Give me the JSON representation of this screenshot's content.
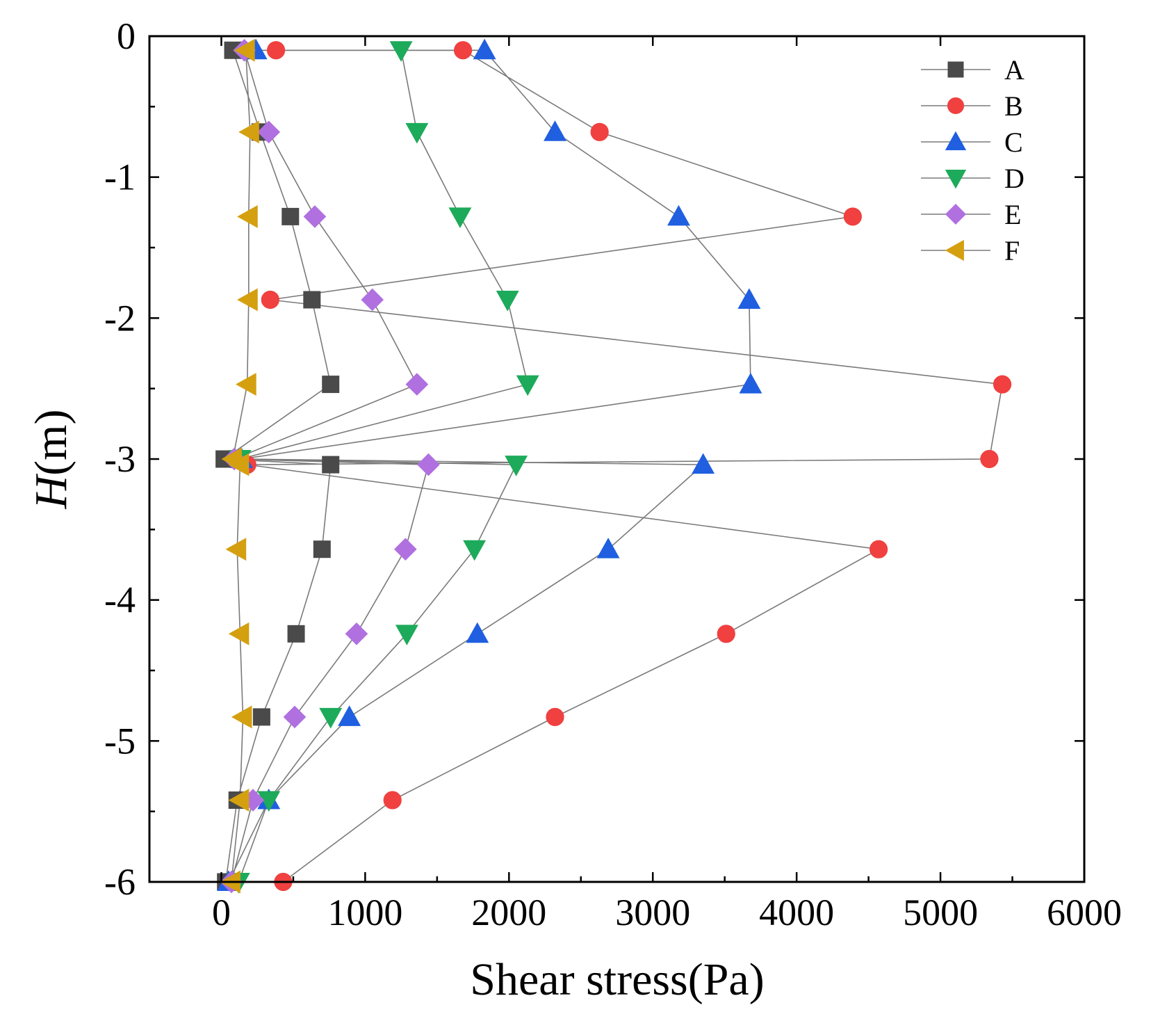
{
  "chart_data": {
    "type": "line",
    "title": "",
    "xlabel": "Shear stress(Pa)",
    "ylabel_italic": "H",
    "ylabel_rest": "(m)",
    "xlim": [
      -500,
      6000
    ],
    "ylim": [
      -6,
      0
    ],
    "x_ticks": [
      0,
      1000,
      2000,
      3000,
      4000,
      5000,
      6000
    ],
    "x_tick_labels": [
      "0",
      "1000",
      "2000",
      "3000",
      "4000",
      "5000",
      "6000"
    ],
    "y_ticks": [
      0,
      -1,
      -2,
      -3,
      -4,
      -5,
      -6
    ],
    "y_tick_labels": [
      "0",
      "-1",
      "-2",
      "-3",
      "-4",
      "-5",
      "-6"
    ],
    "grid": false,
    "legend_position": "top-right",
    "series": [
      {
        "name": "A",
        "marker": "square",
        "color": "#4a4a4a",
        "points": [
          [
            80,
            -0.1
          ],
          [
            270,
            -0.68
          ],
          [
            480,
            -1.28
          ],
          [
            630,
            -1.87
          ],
          [
            760,
            -2.47
          ],
          [
            20,
            -3.0
          ],
          [
            760,
            -3.04
          ],
          [
            700,
            -3.64
          ],
          [
            520,
            -4.24
          ],
          [
            280,
            -4.83
          ],
          [
            110,
            -5.42
          ],
          [
            30,
            -6.0
          ]
        ]
      },
      {
        "name": "B",
        "marker": "circle",
        "color": "#f04040",
        "points": [
          [
            380,
            -0.1
          ],
          [
            1680,
            -0.1
          ],
          [
            2630,
            -0.68
          ],
          [
            4390,
            -1.28
          ],
          [
            340,
            -1.87
          ],
          [
            5430,
            -2.47
          ],
          [
            5340,
            -3.0
          ],
          [
            180,
            -3.04
          ],
          [
            4570,
            -3.64
          ],
          [
            3510,
            -4.24
          ],
          [
            2320,
            -4.83
          ],
          [
            1190,
            -5.42
          ],
          [
            430,
            -6.0
          ]
        ]
      },
      {
        "name": "C",
        "marker": "triangle-up",
        "color": "#1f5fe0",
        "points": [
          [
            240,
            -0.1
          ],
          [
            1830,
            -0.1
          ],
          [
            2320,
            -0.68
          ],
          [
            3180,
            -1.28
          ],
          [
            3670,
            -1.87
          ],
          [
            3680,
            -2.47
          ],
          [
            140,
            -3.0
          ],
          [
            3350,
            -3.04
          ],
          [
            2690,
            -3.64
          ],
          [
            1780,
            -4.24
          ],
          [
            890,
            -4.83
          ],
          [
            330,
            -5.42
          ],
          [
            50,
            -6.0
          ]
        ]
      },
      {
        "name": "D",
        "marker": "triangle-down",
        "color": "#1daa5a",
        "points": [
          [
            1250,
            -0.1
          ],
          [
            1360,
            -0.68
          ],
          [
            1660,
            -1.28
          ],
          [
            1990,
            -1.87
          ],
          [
            2130,
            -2.47
          ],
          [
            130,
            -3.0
          ],
          [
            2050,
            -3.04
          ],
          [
            1760,
            -3.64
          ],
          [
            1290,
            -4.24
          ],
          [
            760,
            -4.83
          ],
          [
            330,
            -5.42
          ],
          [
            120,
            -6.0
          ]
        ]
      },
      {
        "name": "E",
        "marker": "diamond",
        "color": "#b070e0",
        "points": [
          [
            160,
            -0.1
          ],
          [
            330,
            -0.68
          ],
          [
            650,
            -1.28
          ],
          [
            1050,
            -1.87
          ],
          [
            1360,
            -2.47
          ],
          [
            90,
            -3.0
          ],
          [
            1440,
            -3.04
          ],
          [
            1280,
            -3.64
          ],
          [
            940,
            -4.24
          ],
          [
            510,
            -4.83
          ],
          [
            220,
            -5.42
          ],
          [
            70,
            -6.0
          ]
        ]
      },
      {
        "name": "F",
        "marker": "triangle-left",
        "color": "#d4a010",
        "points": [
          [
            170,
            -0.1
          ],
          [
            200,
            -0.68
          ],
          [
            190,
            -1.28
          ],
          [
            190,
            -1.87
          ],
          [
            180,
            -2.47
          ],
          [
            80,
            -3.0
          ],
          [
            130,
            -3.04
          ],
          [
            110,
            -3.64
          ],
          [
            130,
            -4.24
          ],
          [
            150,
            -4.83
          ],
          [
            130,
            -5.42
          ],
          [
            70,
            -6.0
          ]
        ]
      }
    ]
  }
}
